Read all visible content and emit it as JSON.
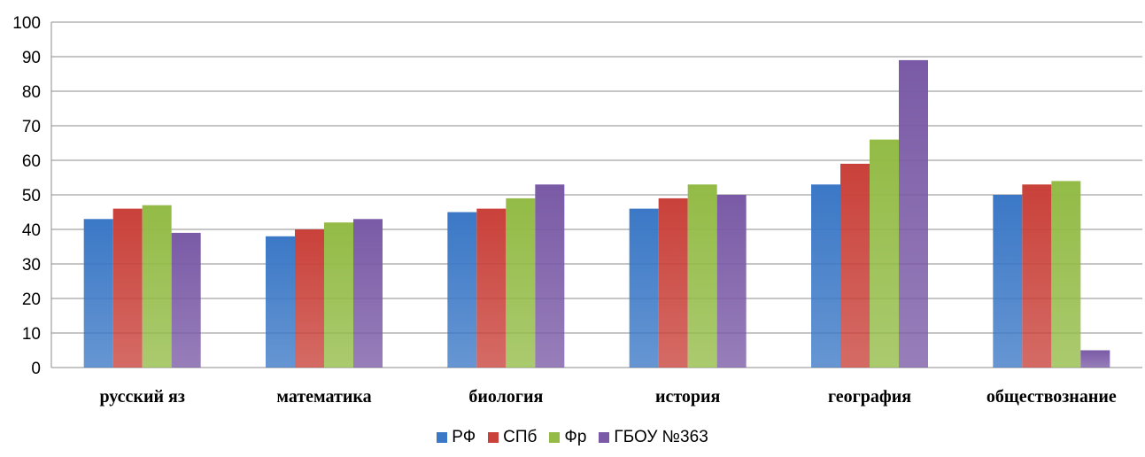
{
  "chart_data": {
    "type": "bar",
    "categories": [
      "русский яз",
      "математика",
      "биология",
      "история",
      "география",
      "обществознание"
    ],
    "series": [
      {
        "name": "РФ",
        "color": "#3b78c6",
        "values": [
          43,
          38,
          45,
          46,
          53,
          50
        ]
      },
      {
        "name": "СПб",
        "color": "#c9413a",
        "values": [
          46,
          40,
          46,
          49,
          59,
          53
        ]
      },
      {
        "name": "Фр",
        "color": "#93bb46",
        "values": [
          47,
          42,
          49,
          53,
          66,
          54
        ]
      },
      {
        "name": "ГБОУ №363",
        "color": "#7a5aa6",
        "values": [
          39,
          43,
          53,
          50,
          89,
          5
        ]
      }
    ],
    "ylim": [
      0,
      100
    ],
    "yticks": [
      0,
      10,
      20,
      30,
      40,
      50,
      60,
      70,
      80,
      90,
      100
    ],
    "grid": true,
    "legend_position": "bottom",
    "title": "",
    "xlabel": "",
    "ylabel": ""
  }
}
